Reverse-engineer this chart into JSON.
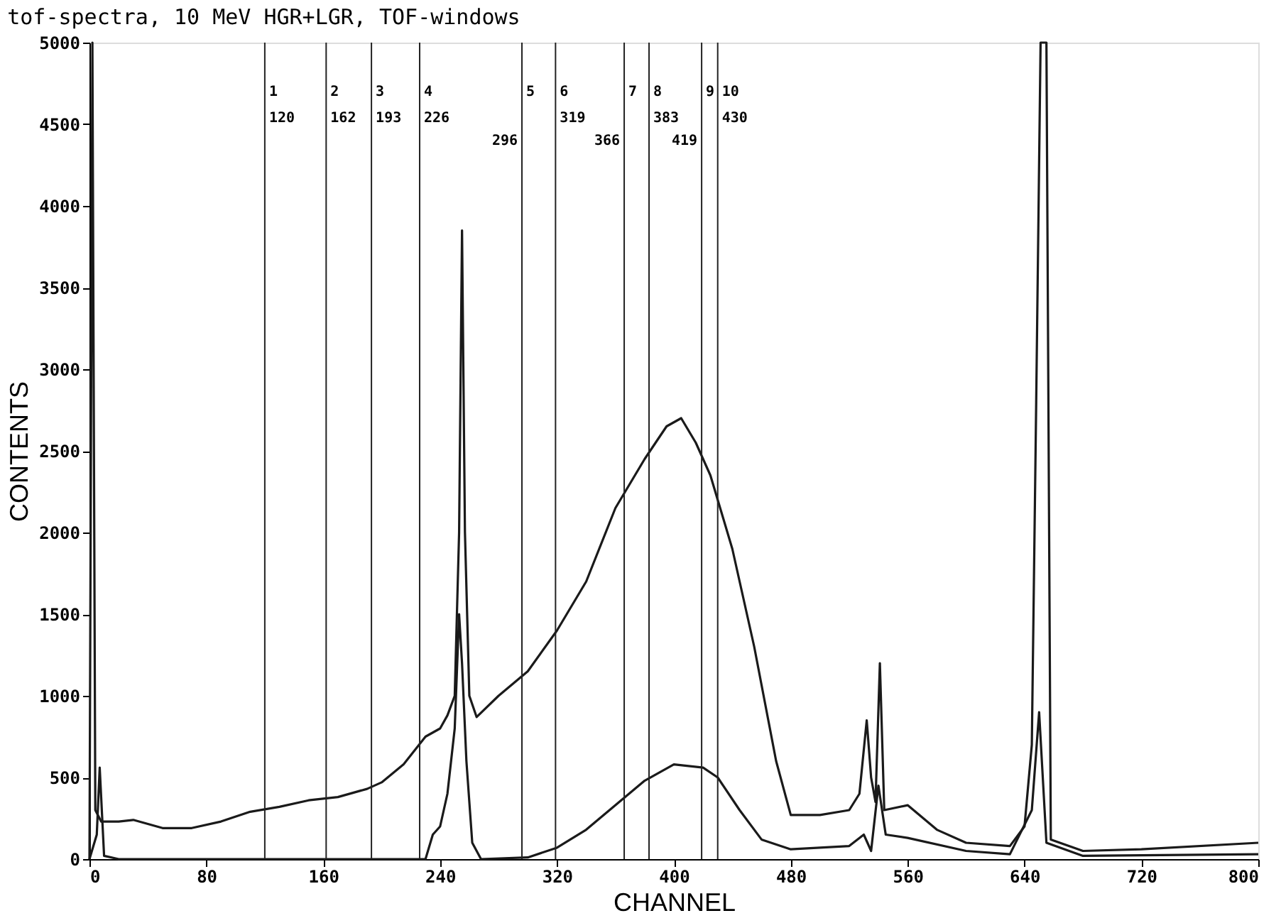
{
  "chart_data": {
    "type": "line",
    "title": "tof-spectra, 10 MeV HGR+LGR, TOF-windows",
    "xlabel": "CHANNEL",
    "ylabel": "CONTENTS",
    "xlim": [
      0,
      800
    ],
    "xticks": [
      0,
      80,
      160,
      240,
      320,
      400,
      480,
      560,
      640,
      720,
      800
    ],
    "ylim": [
      0,
      5000
    ],
    "yticks": [
      0,
      500,
      1000,
      1500,
      2000,
      2500,
      3000,
      3500,
      4000,
      4500,
      5000
    ],
    "grid": false,
    "legend": false,
    "marker": "none",
    "line_style": "solid",
    "series": [
      {
        "color": "#1a1a1a",
        "x": [
          0,
          2,
          4,
          8,
          20,
          30,
          50,
          70,
          90,
          110,
          130,
          150,
          170,
          190,
          200,
          215,
          230,
          240,
          245,
          250,
          253,
          255,
          257,
          260,
          265,
          280,
          300,
          320,
          340,
          360,
          380,
          395,
          405,
          415,
          425,
          440,
          455,
          470,
          480,
          500,
          520,
          527,
          532,
          535,
          538,
          541,
          544,
          560,
          580,
          600,
          630,
          640,
          645,
          648,
          651,
          655,
          658,
          680,
          720,
          800
        ],
        "values": [
          0,
          5000,
          300,
          230,
          230,
          240,
          190,
          190,
          230,
          290,
          320,
          360,
          380,
          430,
          470,
          580,
          750,
          800,
          880,
          1000,
          2000,
          3850,
          2000,
          1000,
          870,
          1000,
          1150,
          1400,
          1700,
          2150,
          2450,
          2650,
          2700,
          2550,
          2350,
          1900,
          1300,
          600,
          270,
          270,
          300,
          400,
          850,
          500,
          350,
          1200,
          300,
          330,
          180,
          100,
          80,
          200,
          700,
          2800,
          5000,
          5000,
          120,
          50,
          60,
          100
        ]
      },
      {
        "color": "#1a1a1a",
        "x": [
          0,
          5,
          7,
          10,
          20,
          100,
          230,
          235,
          240,
          245,
          250,
          253,
          255,
          258,
          262,
          268,
          300,
          320,
          340,
          360,
          380,
          400,
          420,
          430,
          445,
          460,
          480,
          520,
          530,
          535,
          540,
          545,
          560,
          600,
          630,
          645,
          650,
          655,
          680,
          800
        ],
        "values": [
          0,
          150,
          560,
          20,
          0,
          0,
          0,
          150,
          200,
          400,
          800,
          1500,
          1200,
          600,
          100,
          0,
          10,
          70,
          180,
          330,
          480,
          580,
          560,
          500,
          300,
          120,
          60,
          80,
          150,
          50,
          450,
          150,
          130,
          50,
          30,
          300,
          900,
          100,
          20,
          30
        ]
      }
    ],
    "ref_lines": [
      {
        "axis": "x",
        "value": 120,
        "label": "120"
      },
      {
        "axis": "x",
        "value": 162,
        "label": "162"
      },
      {
        "axis": "x",
        "value": 193,
        "label": "193"
      },
      {
        "axis": "x",
        "value": 226,
        "label": "226"
      },
      {
        "axis": "x",
        "value": 296,
        "label": "296"
      },
      {
        "axis": "x",
        "value": 319,
        "label": "319"
      },
      {
        "axis": "x",
        "value": 366,
        "label": "366"
      },
      {
        "axis": "x",
        "value": 383,
        "label": "383"
      },
      {
        "axis": "x",
        "value": 419,
        "label": "419"
      },
      {
        "axis": "x",
        "value": 430,
        "label": "430"
      }
    ],
    "annotations": [
      {
        "text": "1",
        "x": 120,
        "y": 4700
      },
      {
        "text": "2",
        "x": 162,
        "y": 4700
      },
      {
        "text": "3",
        "x": 193,
        "y": 4700
      },
      {
        "text": "4",
        "x": 226,
        "y": 4700
      },
      {
        "text": "5",
        "x": 296,
        "y": 4700
      },
      {
        "text": "6",
        "x": 319,
        "y": 4700
      },
      {
        "text": "7",
        "x": 366,
        "y": 4700
      },
      {
        "text": "8",
        "x": 383,
        "y": 4700
      },
      {
        "text": "9",
        "x": 419,
        "y": 4700
      },
      {
        "text": "10",
        "x": 430,
        "y": 4700
      }
    ]
  }
}
